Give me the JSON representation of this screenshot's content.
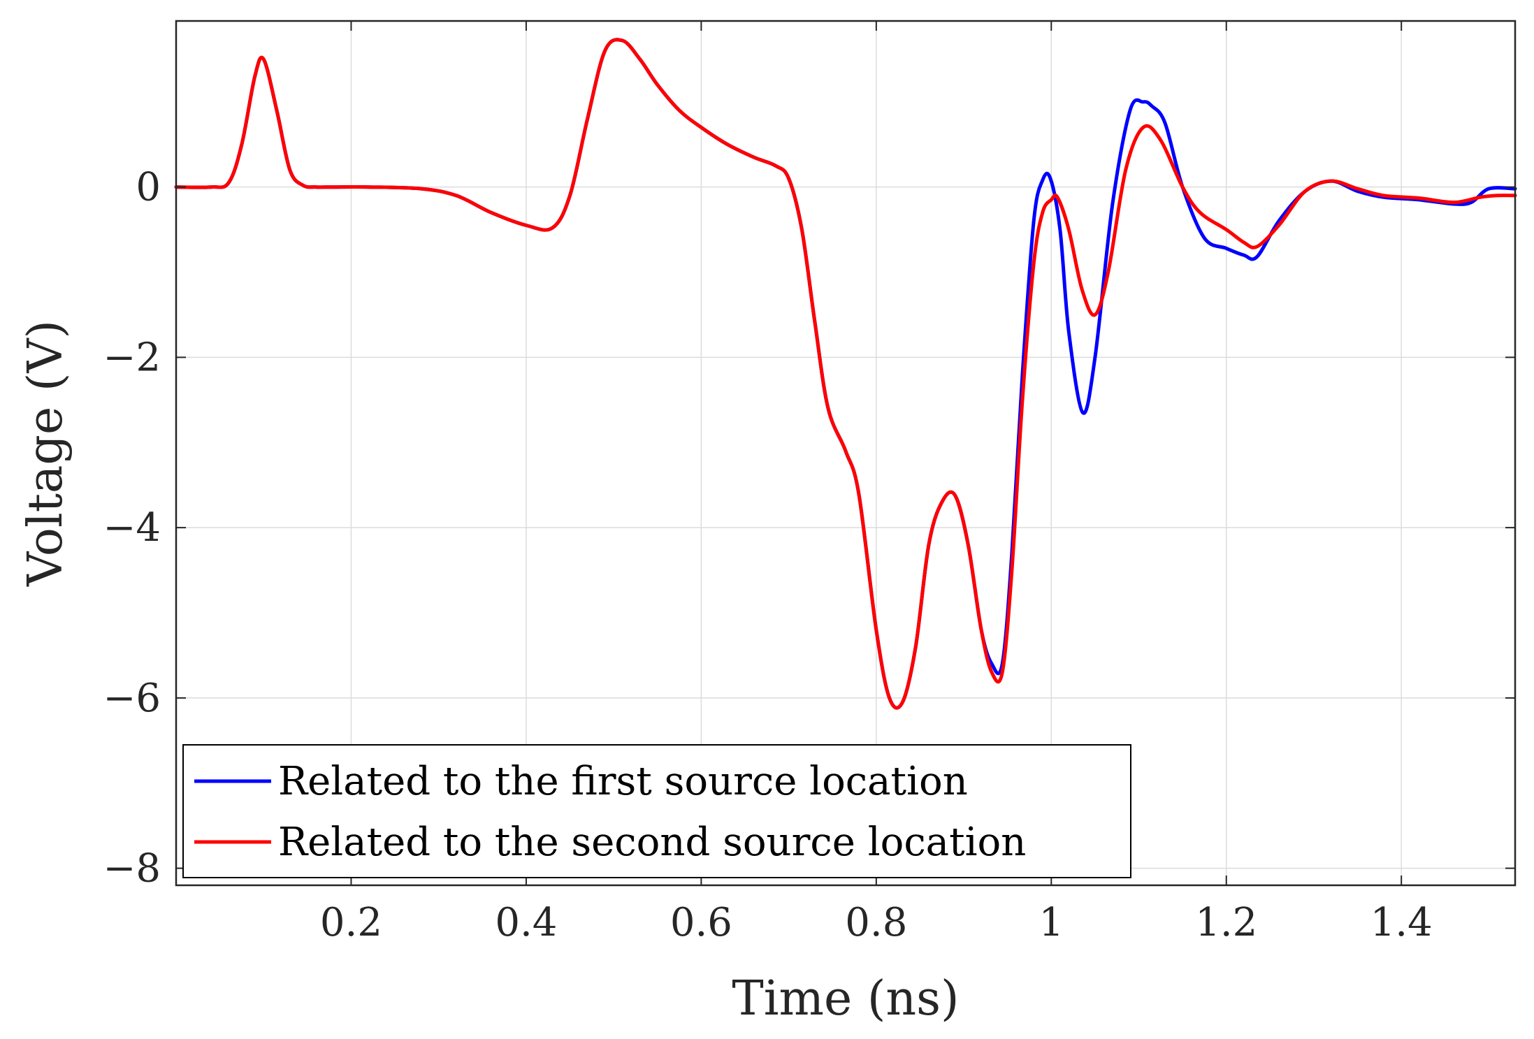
{
  "chart_data": {
    "type": "line",
    "title": "",
    "xlabel": "Time (ns)",
    "ylabel": "Voltage (V)",
    "xlim": [
      0,
      1.53
    ],
    "ylim": [
      -8.2,
      1.95
    ],
    "xticks": [
      0.2,
      0.4,
      0.6,
      0.8,
      1,
      1.2,
      1.4
    ],
    "xtick_labels": [
      "0.2",
      "0.4",
      "0.6",
      "0.8",
      "1",
      "1.2",
      "1.4"
    ],
    "yticks": [
      0,
      -2,
      -4,
      -6,
      -8
    ],
    "ytick_labels": [
      "0",
      "−2",
      "−4",
      "−6",
      "−8"
    ],
    "grid": true,
    "legend_location": "bottom-left",
    "series": [
      {
        "name": "Related to the first source location",
        "color": "#0000FF",
        "x": [
          0,
          0.04,
          0.06,
          0.075,
          0.09,
          0.1,
          0.115,
          0.13,
          0.145,
          0.16,
          0.18,
          0.22,
          0.28,
          0.32,
          0.36,
          0.4,
          0.43,
          0.45,
          0.47,
          0.49,
          0.51,
          0.53,
          0.55,
          0.575,
          0.6,
          0.63,
          0.66,
          0.685,
          0.7,
          0.715,
          0.73,
          0.745,
          0.765,
          0.78,
          0.8,
          0.815,
          0.83,
          0.845,
          0.86,
          0.875,
          0.89,
          0.905,
          0.92,
          0.932,
          0.944,
          0.955,
          0.967,
          0.98,
          0.99,
          0.999,
          1.01,
          1.02,
          1.036,
          1.05,
          1.07,
          1.09,
          1.105,
          1.115,
          1.13,
          1.15,
          1.175,
          1.2,
          1.22,
          1.235,
          1.26,
          1.29,
          1.32,
          1.35,
          1.38,
          1.42,
          1.46,
          1.48,
          1.5,
          1.53
        ],
        "y": [
          0,
          0,
          0.05,
          0.5,
          1.3,
          1.5,
          0.9,
          0.2,
          0.02,
          0,
          0,
          0,
          -0.02,
          -0.1,
          -0.3,
          -0.45,
          -0.48,
          -0.1,
          0.8,
          1.6,
          1.72,
          1.5,
          1.2,
          0.9,
          0.7,
          0.5,
          0.35,
          0.25,
          0.1,
          -0.5,
          -1.6,
          -2.6,
          -3.1,
          -3.6,
          -5.2,
          -6,
          -6.05,
          -5.4,
          -4.2,
          -3.7,
          -3.62,
          -4.2,
          -5.2,
          -5.6,
          -5.6,
          -4.3,
          -2.2,
          -0.4,
          0.08,
          0.1,
          -0.5,
          -1.7,
          -2.65,
          -2,
          -0.2,
          0.9,
          1.0,
          0.95,
          0.75,
          0,
          -0.6,
          -0.72,
          -0.8,
          -0.82,
          -0.4,
          -0.05,
          0.07,
          -0.05,
          -0.12,
          -0.15,
          -0.2,
          -0.18,
          -0.02,
          -0.02
        ]
      },
      {
        "name": "Related to the second source location",
        "color": "#FF0000",
        "x": [
          0,
          0.04,
          0.06,
          0.075,
          0.09,
          0.1,
          0.115,
          0.13,
          0.145,
          0.16,
          0.18,
          0.22,
          0.28,
          0.32,
          0.36,
          0.4,
          0.43,
          0.45,
          0.47,
          0.49,
          0.51,
          0.53,
          0.55,
          0.575,
          0.6,
          0.63,
          0.66,
          0.685,
          0.7,
          0.715,
          0.73,
          0.745,
          0.765,
          0.78,
          0.8,
          0.815,
          0.83,
          0.845,
          0.86,
          0.875,
          0.89,
          0.905,
          0.92,
          0.932,
          0.944,
          0.955,
          0.967,
          0.98,
          0.99,
          1.0,
          1.007,
          1.02,
          1.035,
          1.05,
          1.065,
          1.085,
          1.105,
          1.125,
          1.15,
          1.17,
          1.2,
          1.22,
          1.235,
          1.26,
          1.29,
          1.32,
          1.35,
          1.38,
          1.42,
          1.46,
          1.49,
          1.51,
          1.53
        ],
        "y": [
          0,
          0,
          0.05,
          0.5,
          1.3,
          1.5,
          0.9,
          0.2,
          0.02,
          0,
          0,
          0,
          -0.02,
          -0.1,
          -0.3,
          -0.45,
          -0.48,
          -0.1,
          0.8,
          1.6,
          1.72,
          1.5,
          1.2,
          0.9,
          0.7,
          0.5,
          0.35,
          0.25,
          0.1,
          -0.5,
          -1.6,
          -2.6,
          -3.1,
          -3.6,
          -5.2,
          -6,
          -6.05,
          -5.4,
          -4.2,
          -3.7,
          -3.62,
          -4.2,
          -5.2,
          -5.7,
          -5.7,
          -4.5,
          -2.5,
          -0.9,
          -0.3,
          -0.15,
          -0.12,
          -0.5,
          -1.2,
          -1.5,
          -1.0,
          0.2,
          0.7,
          0.55,
          0.0,
          -0.3,
          -0.5,
          -0.65,
          -0.7,
          -0.45,
          -0.05,
          0.07,
          -0.02,
          -0.1,
          -0.13,
          -0.18,
          -0.12,
          -0.1,
          -0.1
        ]
      }
    ]
  }
}
